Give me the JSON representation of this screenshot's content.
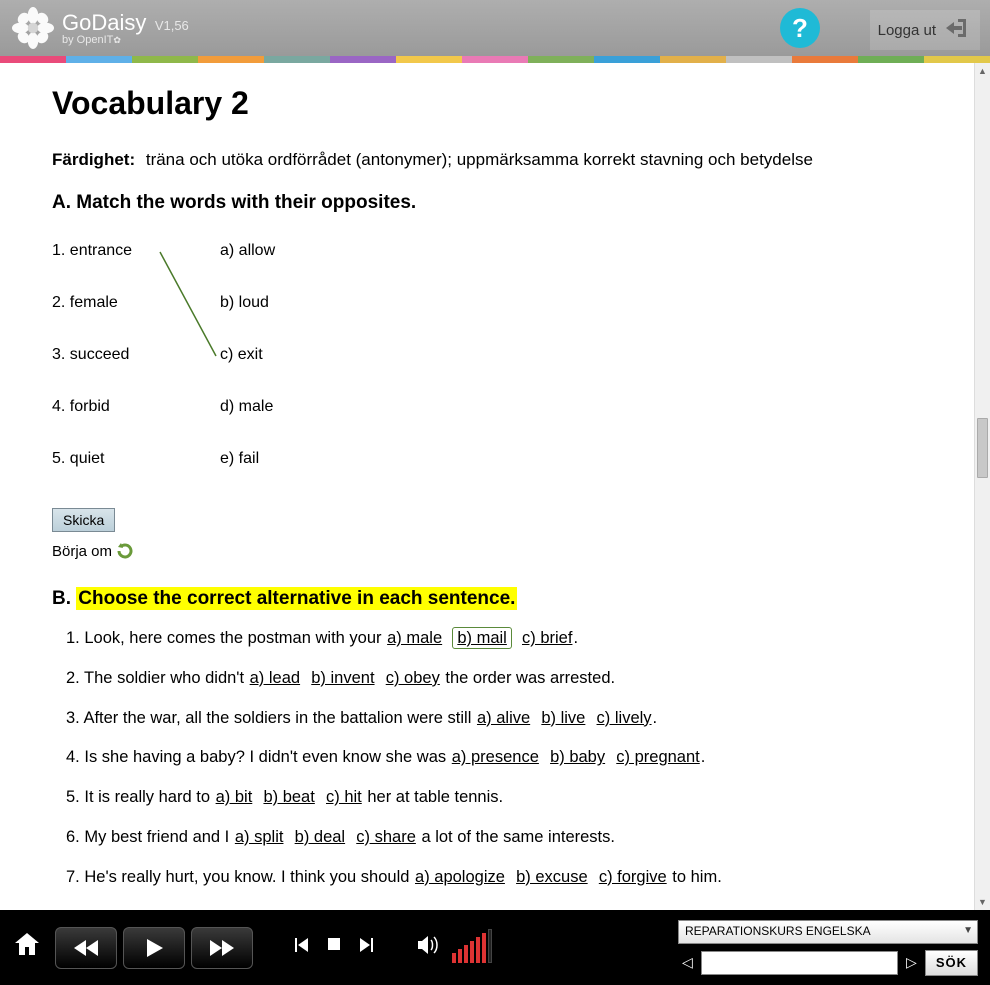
{
  "header": {
    "title": "GoDaisy",
    "version": "V1,56",
    "sub": "by OpenIT",
    "help": "?",
    "logout": "Logga ut"
  },
  "colorStrip": [
    "#e94b7a",
    "#5fb0e8",
    "#8fb84a",
    "#f29c3b",
    "#7aa8a0",
    "#9a66c4",
    "#f2c84b",
    "#e97ab5",
    "#7fb05a",
    "#3aa0d8",
    "#e2b04a",
    "#c0c0c0",
    "#e97a3b",
    "#6fae56",
    "#e2c84a"
  ],
  "page": {
    "title": "Vocabulary 2",
    "skillLabel": "Färdighet:",
    "skillText": "träna och utöka ordförrådet (antonymer); uppmärksamma korrekt stavning och betydelse",
    "sectionA": "A. Match the words with their opposites.",
    "left": [
      {
        "n": "1.",
        "w": "entrance"
      },
      {
        "n": "2.",
        "w": "female"
      },
      {
        "n": "3.",
        "w": "succeed"
      },
      {
        "n": "4.",
        "w": "forbid"
      },
      {
        "n": "5.",
        "w": "quiet"
      }
    ],
    "right": [
      {
        "l": "a)",
        "w": "allow"
      },
      {
        "l": "b)",
        "w": "loud"
      },
      {
        "l": "c)",
        "w": "exit"
      },
      {
        "l": "d)",
        "w": "male"
      },
      {
        "l": "e)",
        "w": "fail"
      }
    ],
    "submit": "Skicka",
    "restart": "Börja om",
    "sectionB_prefix": "B. ",
    "sectionB": "Choose the correct alternative in each sentence.",
    "sentences": [
      {
        "n": "1.",
        "pre": "Look, here comes the postman with your ",
        "opts": [
          "a) male",
          "b) mail",
          "c) brief"
        ],
        "sel": 1,
        "post": "."
      },
      {
        "n": "2.",
        "pre": "The soldier who didn't ",
        "opts": [
          "a) lead",
          "b) invent",
          "c) obey"
        ],
        "sel": -1,
        "post": " the order was arrested."
      },
      {
        "n": "3.",
        "pre": "After the war, all the soldiers in the battalion were still ",
        "opts": [
          "a) alive",
          "b) live",
          "c) lively"
        ],
        "sel": -1,
        "post": "."
      },
      {
        "n": "4.",
        "pre": "Is she having a baby? I didn't even know she was ",
        "opts": [
          "a) presence",
          "b) baby",
          "c) pregnant"
        ],
        "sel": -1,
        "post": "."
      },
      {
        "n": "5.",
        "pre": "It is really hard to ",
        "opts": [
          "a) bit",
          "b) beat",
          "c) hit"
        ],
        "sel": -1,
        "post": " her at table tennis."
      },
      {
        "n": "6.",
        "pre": "My best friend and I ",
        "opts": [
          "a) split",
          "b) deal",
          "c) share"
        ],
        "sel": -1,
        "post": " a lot of the same interests."
      },
      {
        "n": "7.",
        "pre": "He's really hurt, you know. I think you should ",
        "opts": [
          "a) apologize",
          "b) excuse",
          "c) forgive"
        ],
        "sel": -1,
        "post": " to him."
      }
    ]
  },
  "footer": {
    "course": "REPARATIONSKURS ENGELSKA",
    "searchBtn": "SÖK"
  }
}
